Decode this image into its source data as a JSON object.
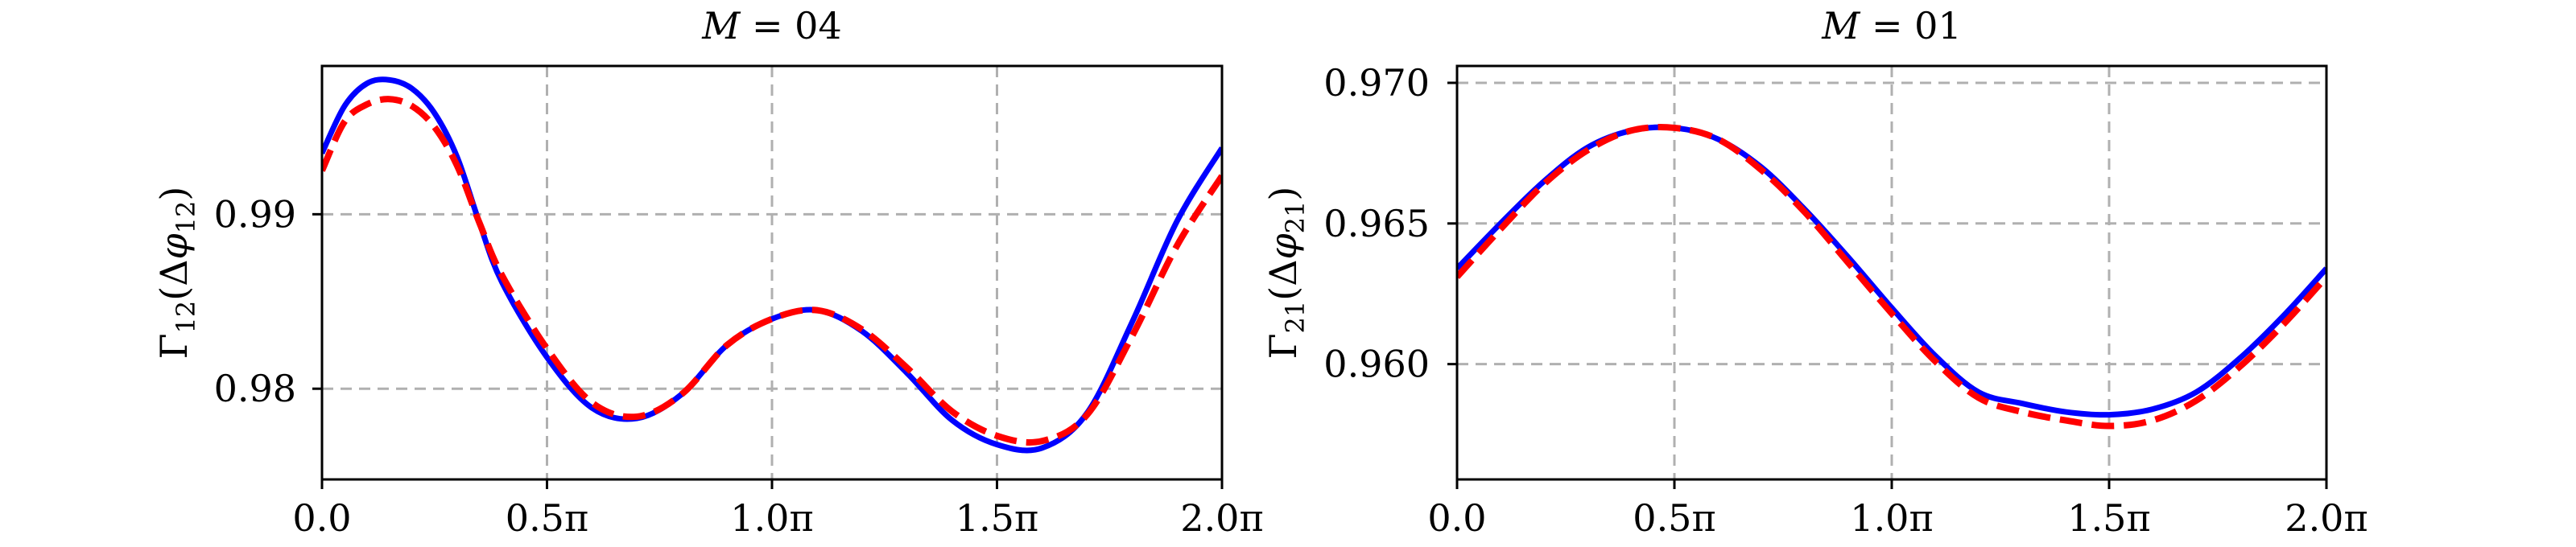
{
  "chart_data": [
    {
      "type": "line",
      "title": "M = 04",
      "ylabel": "Γ12(Δφ12)",
      "xlabel": "",
      "xlim": [
        0,
        2
      ],
      "ylim": [
        0.9748,
        0.9985
      ],
      "x_ticks": [
        0,
        0.5,
        1,
        1.5,
        2
      ],
      "x_tick_labels": [
        "0.0",
        "0.5π",
        "1.0π",
        "1.5π",
        "2.0π"
      ],
      "y_ticks": [
        0.98,
        0.99
      ],
      "y_tick_labels": [
        "0.98",
        "0.99"
      ],
      "grid": true,
      "series": [
        {
          "color": "#0000ff",
          "style": "solid",
          "x": [
            0,
            0.05,
            0.1,
            0.15,
            0.2,
            0.25,
            0.3,
            0.35,
            0.4,
            0.5,
            0.6,
            0.7,
            0.8,
            0.9,
            1.0,
            1.1,
            1.2,
            1.3,
            1.4,
            1.5,
            1.6,
            1.7,
            1.8,
            1.9,
            2.0
          ],
          "y": [
            0.9935,
            0.9962,
            0.9975,
            0.9977,
            0.9972,
            0.9958,
            0.9933,
            0.9895,
            0.9861,
            0.9818,
            0.9789,
            0.9783,
            0.9797,
            0.9825,
            0.984,
            0.9845,
            0.9833,
            0.9809,
            0.9782,
            0.9768,
            0.9766,
            0.9786,
            0.9838,
            0.9896,
            0.9938
          ]
        },
        {
          "color": "#ff0000",
          "style": "dashed",
          "x": [
            0,
            0.05,
            0.1,
            0.15,
            0.2,
            0.25,
            0.3,
            0.35,
            0.4,
            0.5,
            0.6,
            0.7,
            0.8,
            0.9,
            1.0,
            1.1,
            1.2,
            1.3,
            1.4,
            1.5,
            1.6,
            1.7,
            1.8,
            1.9,
            2.0
          ],
          "y": [
            0.9925,
            0.9953,
            0.9963,
            0.9966,
            0.9962,
            0.995,
            0.9928,
            0.9895,
            0.9865,
            0.9823,
            0.9792,
            0.9784,
            0.9797,
            0.9825,
            0.984,
            0.9845,
            0.9834,
            0.9812,
            0.9787,
            0.9773,
            0.977,
            0.9785,
            0.983,
            0.9882,
            0.9922
          ]
        }
      ]
    },
    {
      "type": "line",
      "title": "M = 01",
      "ylabel": "Γ21(Δφ21)",
      "xlabel": "",
      "xlim": [
        0,
        2
      ],
      "ylim": [
        0.9559,
        0.9706
      ],
      "x_ticks": [
        0,
        0.5,
        1,
        1.5,
        2
      ],
      "x_tick_labels": [
        "0.0",
        "0.5π",
        "1.0π",
        "1.5π",
        "2.0π"
      ],
      "y_ticks": [
        0.96,
        0.965,
        0.97
      ],
      "y_tick_labels": [
        "0.960",
        "0.965",
        "0.970"
      ],
      "grid": true,
      "series": [
        {
          "color": "#0000ff",
          "style": "solid",
          "x": [
            0,
            0.1,
            0.2,
            0.3,
            0.4,
            0.5,
            0.6,
            0.7,
            0.8,
            0.9,
            1.0,
            1.1,
            1.2,
            1.3,
            1.4,
            1.5,
            1.6,
            1.7,
            1.8,
            1.9,
            2.0
          ],
          "y": [
            0.9634,
            0.965,
            0.9665,
            0.9677,
            0.9683,
            0.9684,
            0.968,
            0.967,
            0.9655,
            0.9638,
            0.962,
            0.9603,
            0.959,
            0.9586,
            0.9583,
            0.9582,
            0.9584,
            0.959,
            0.9602,
            0.9617,
            0.9634
          ]
        },
        {
          "color": "#ff0000",
          "style": "dashed",
          "x": [
            0,
            0.1,
            0.2,
            0.3,
            0.4,
            0.5,
            0.6,
            0.7,
            0.8,
            0.9,
            1.0,
            1.1,
            1.2,
            1.3,
            1.4,
            1.5,
            1.6,
            1.7,
            1.8,
            1.9,
            2.0
          ],
          "y": [
            0.9631,
            0.9648,
            0.9664,
            0.9676,
            0.9683,
            0.9684,
            0.968,
            0.9669,
            0.9654,
            0.9636,
            0.9618,
            0.9601,
            0.9588,
            0.9583,
            0.958,
            0.9578,
            0.958,
            0.9587,
            0.9599,
            0.9614,
            0.9631
          ]
        }
      ]
    }
  ]
}
